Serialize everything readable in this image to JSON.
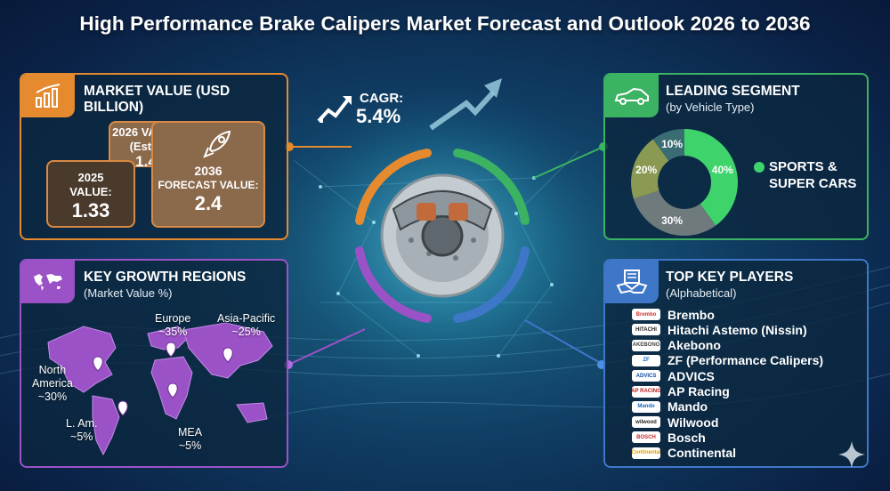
{
  "title": "High Performance Brake Calipers Market Forecast and Outlook 2026 to 2036",
  "colors": {
    "orange": "#e58a2e",
    "green": "#3bb363",
    "purple": "#9b52c7",
    "blue": "#3e77c8",
    "background": "#103d63"
  },
  "market_value": {
    "heading": "MARKET VALUE (USD BILLION)",
    "icon": "bar-chart-growth-icon",
    "y2026": {
      "label_line1": "2026 VALUE",
      "label_line2": "(Est.):",
      "value": "1.4"
    },
    "y2025": {
      "label_line1": "2025",
      "label_line2": "VALUE:",
      "value": "1.33"
    },
    "y2036": {
      "label_line1": "2036",
      "label_line2": "FORECAST VALUE:",
      "value": "2.4",
      "icon": "rocket-icon"
    }
  },
  "cagr": {
    "label": "CAGR:",
    "value": "5.4%",
    "icon": "growth-arrow-icon"
  },
  "center": {
    "icon": "brake-caliper-icon"
  },
  "leading_segment": {
    "heading": "LEADING SEGMENT",
    "subheading": "(by Vehicle Type)",
    "icon": "sports-car-icon",
    "segment_label_line1": "SPORTS &",
    "segment_label_line2": "SUPER CARS"
  },
  "chart_data": {
    "type": "pie",
    "donut": true,
    "slices": [
      {
        "label": "40%",
        "value": 40,
        "color": "#3fd36b"
      },
      {
        "label": "30%",
        "value": 30,
        "color": "#6e7a7c"
      },
      {
        "label": "20%",
        "value": 20,
        "color": "#8a9a52"
      },
      {
        "label": "10%",
        "value": 10,
        "color": "#3a6d73"
      }
    ]
  },
  "growth_regions": {
    "heading": "KEY GROWTH REGIONS",
    "subheading": "(Market Value %)",
    "icon": "world-map-icon",
    "regions": [
      {
        "name": "Europe",
        "share": "~35%"
      },
      {
        "name": "Asia-Pacific",
        "share": "~25%"
      },
      {
        "name": "North",
        "name2": "America",
        "share": "~30%"
      },
      {
        "name": "L. Am.",
        "share": "~5%"
      },
      {
        "name": "MEA",
        "share": "~5%"
      }
    ]
  },
  "key_players": {
    "heading": "TOP KEY PLAYERS",
    "subheading": "(Alphabetical)",
    "icon": "handshake-icon",
    "players": [
      {
        "name": "Brembo",
        "logo_text": "Brembo",
        "logo_color": "#d32f2f"
      },
      {
        "name": "Hitachi Astemo (Nissin)",
        "logo_text": "HITACHI",
        "logo_color": "#222222"
      },
      {
        "name": "Akebono",
        "logo_text": "AKEBONO",
        "logo_color": "#444444"
      },
      {
        "name": "ZF (Performance Calipers)",
        "logo_text": "ZF",
        "logo_color": "#1565c0"
      },
      {
        "name": "ADVICS",
        "logo_text": "ADVICS",
        "logo_color": "#0d47a1"
      },
      {
        "name": "AP Racing",
        "logo_text": "AP RACING",
        "logo_color": "#b71c1c"
      },
      {
        "name": "Mando",
        "logo_text": "Mando",
        "logo_color": "#1565c0"
      },
      {
        "name": "Wilwood",
        "logo_text": "wilwood",
        "logo_color": "#222222"
      },
      {
        "name": "Bosch",
        "logo_text": "BOSCH",
        "logo_color": "#c62828"
      },
      {
        "name": "Continental",
        "logo_text": "Continental",
        "logo_color": "#e0a000"
      }
    ]
  }
}
